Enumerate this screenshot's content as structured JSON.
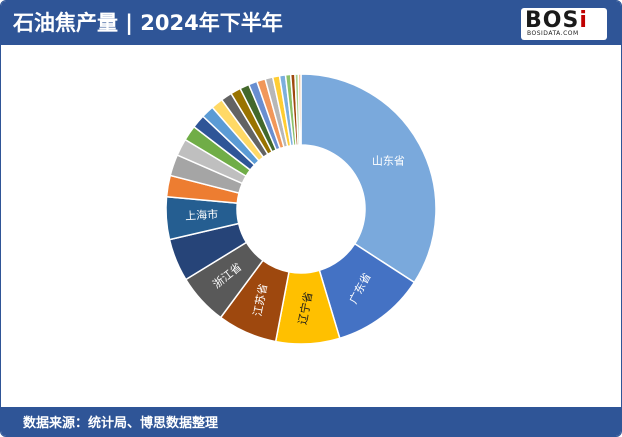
{
  "header": {
    "title": "石油焦产量 | 2024年下半年",
    "logo_main": "BOS",
    "logo_accent": "i",
    "logo_sub": "BOSIDATA.COM"
  },
  "footer": {
    "source": "数据来源：统计局、博思数据整理"
  },
  "chart_data": {
    "type": "pie",
    "donut": true,
    "title": "",
    "categories": [
      "山东省",
      "广东省",
      "辽宁省",
      "江苏省",
      "浙江省",
      "",
      "上海市",
      "",
      "",
      "",
      "",
      "",
      "",
      "",
      "",
      "",
      "",
      "",
      "",
      "",
      "",
      "",
      "",
      "",
      "",
      ""
    ],
    "values": [
      33.5,
      11.0,
      7.5,
      7.0,
      6.0,
      5.0,
      5.0,
      2.5,
      2.5,
      2.0,
      1.8,
      1.6,
      1.5,
      1.4,
      1.3,
      1.2,
      1.1,
      1.0,
      1.0,
      0.9,
      0.8,
      0.7,
      0.6,
      0.5,
      0.4,
      0.3
    ],
    "colors": [
      "#7aa9dc",
      "#4472c4",
      "#ffc000",
      "#9e480e",
      "#595959",
      "#264478",
      "#255e91",
      "#ed7d31",
      "#a5a5a5",
      "#bfbfbf",
      "#70ad47",
      "#2f5597",
      "#5b9bd5",
      "#ffd966",
      "#636363",
      "#997300",
      "#43682b",
      "#698ed0",
      "#f1975a",
      "#b7b7b7",
      "#ffcd33",
      "#7cafdd",
      "#8cc168",
      "#9e480e",
      "#a9d18e",
      "#f4b183"
    ],
    "label_colors": [
      "#ffffff",
      "#ffffff",
      "#1a1a1a",
      "#ffffff",
      "#ffffff",
      "#ffffff",
      "#ffffff"
    ],
    "label_rotations": [
      0,
      -62,
      -79,
      -79,
      -38,
      0,
      -3
    ]
  }
}
